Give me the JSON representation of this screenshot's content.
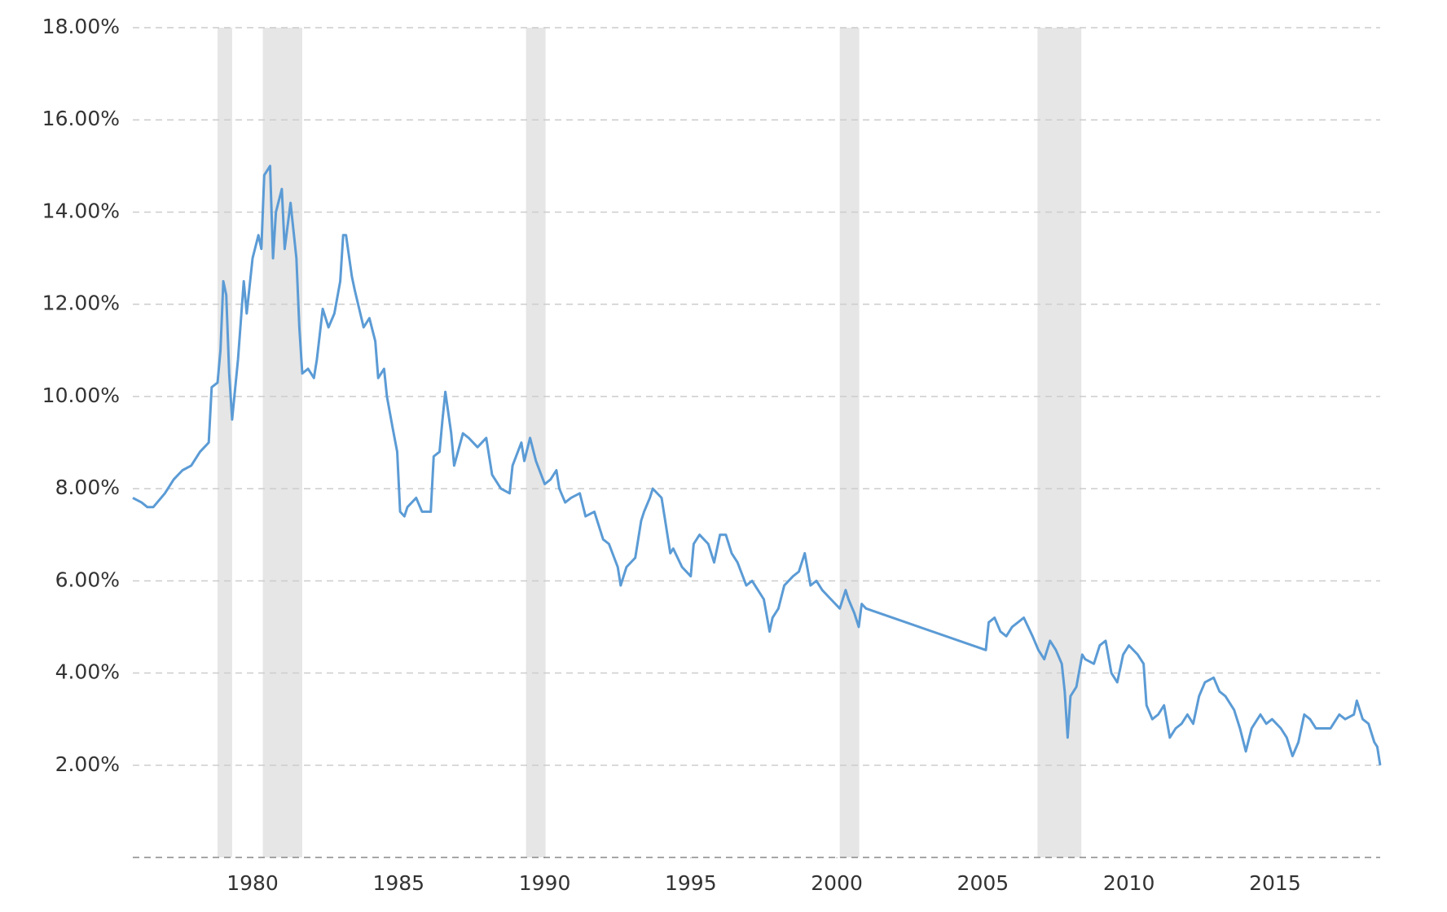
{
  "chart_data": {
    "type": "line",
    "x": [
      1975.9,
      1976.2,
      1976.4,
      1976.6,
      1977.0,
      1977.3,
      1977.6,
      1977.9,
      1978.2,
      1978.5,
      1978.6,
      1978.8,
      1978.9,
      1979.0,
      1979.1,
      1979.2,
      1979.3,
      1979.5,
      1979.7,
      1979.8,
      1980.0,
      1980.2,
      1980.3,
      1980.4,
      1980.6,
      1980.7,
      1980.8,
      1981.0,
      1981.1,
      1981.3,
      1981.5,
      1981.6,
      1981.7,
      1981.9,
      1982.1,
      1982.2,
      1982.4,
      1982.6,
      1982.8,
      1983.0,
      1983.1,
      1983.2,
      1983.4,
      1983.5,
      1983.8,
      1984.0,
      1984.2,
      1984.3,
      1984.5,
      1984.6,
      1984.8,
      1984.95,
      1985.05,
      1985.2,
      1985.3,
      1985.6,
      1985.8,
      1986.1,
      1986.2,
      1986.4,
      1986.5,
      1986.6,
      1986.8,
      1986.9,
      1987.2,
      1987.4,
      1987.7,
      1988.0,
      1988.2,
      1988.5,
      1988.8,
      1988.9,
      1989.2,
      1989.3,
      1989.5,
      1989.7,
      1990.0,
      1990.2,
      1990.4,
      1990.5,
      1990.7,
      1990.9,
      1991.2,
      1991.4,
      1991.7,
      1992.0,
      1992.2,
      1992.5,
      1992.6,
      1992.8,
      1993.1,
      1993.3,
      1993.4,
      1993.6,
      1993.7,
      1994.0,
      1994.1,
      1994.3,
      1994.4,
      1994.7,
      1995.0,
      1995.1,
      1995.3,
      1995.6,
      1995.8,
      1996.0,
      1996.2,
      1996.4,
      1996.6,
      1996.9,
      1997.1,
      1997.3,
      1997.5,
      1997.7,
      1997.8,
      1998.0,
      1998.2,
      1998.5,
      1998.7,
      1998.9,
      1999.1,
      1999.3,
      1999.5,
      1999.8,
      2000.1,
      2000.3,
      2000.4,
      2000.6,
      2000.75,
      2000.85,
      2001.0,
      2005.1,
      2005.2,
      2005.4,
      2005.6,
      2005.8,
      2006.0,
      2006.2,
      2006.4,
      2006.7,
      2006.9,
      2007.1,
      2007.3,
      2007.5,
      2007.7,
      2007.8,
      2007.9,
      2008.0,
      2008.2,
      2008.4,
      2008.5,
      2008.8,
      2009.0,
      2009.2,
      2009.4,
      2009.6,
      2009.8,
      2010.0,
      2010.3,
      2010.5,
      2010.6,
      2010.8,
      2011.0,
      2011.2,
      2011.4,
      2011.6,
      2011.8,
      2012.0,
      2012.2,
      2012.4,
      2012.6,
      2012.9,
      2013.1,
      2013.3,
      2013.6,
      2013.8,
      2014.0,
      2014.2,
      2014.5,
      2014.7,
      2014.9,
      2015.2,
      2015.4,
      2015.6,
      2015.8,
      2016.0,
      2016.2,
      2016.4,
      2016.7,
      2016.9,
      2017.2,
      2017.4,
      2017.7,
      2017.8,
      2018.0,
      2018.2,
      2018.4,
      2018.5,
      2018.6
    ],
    "series": [
      {
        "color": "#5b9bd5",
        "values": [
          7.8,
          7.7,
          7.6,
          7.6,
          7.9,
          8.2,
          8.4,
          8.5,
          8.8,
          9.0,
          10.2,
          10.3,
          11.0,
          12.5,
          12.2,
          10.5,
          9.5,
          10.8,
          12.5,
          11.8,
          13.0,
          13.5,
          13.2,
          14.8,
          15.0,
          13.0,
          14.0,
          14.5,
          13.2,
          14.2,
          13.0,
          11.5,
          10.5,
          10.6,
          10.4,
          10.8,
          11.9,
          11.5,
          11.8,
          12.5,
          13.5,
          13.5,
          12.6,
          12.3,
          11.5,
          11.7,
          11.2,
          10.4,
          10.6,
          10.0,
          9.3,
          8.8,
          7.5,
          7.4,
          7.6,
          7.8,
          7.5,
          7.5,
          8.7,
          8.8,
          9.5,
          10.1,
          9.2,
          8.5,
          9.2,
          9.1,
          8.9,
          9.1,
          8.3,
          8.0,
          7.9,
          8.5,
          9.0,
          8.6,
          9.1,
          8.6,
          8.1,
          8.2,
          8.4,
          8.0,
          7.7,
          7.8,
          7.9,
          7.4,
          7.5,
          6.9,
          6.8,
          6.3,
          5.9,
          6.3,
          6.5,
          7.3,
          7.5,
          7.8,
          8.0,
          7.8,
          7.4,
          6.6,
          6.7,
          6.3,
          6.1,
          6.8,
          7.0,
          6.8,
          6.4,
          7.0,
          7.0,
          6.6,
          6.4,
          5.9,
          6.0,
          5.8,
          5.6,
          4.9,
          5.2,
          5.4,
          5.9,
          6.1,
          6.2,
          6.6,
          5.9,
          6.0,
          5.8,
          5.6,
          5.4,
          5.8,
          5.6,
          5.3,
          5.0,
          5.5,
          5.4,
          4.5,
          5.1,
          5.2,
          4.9,
          4.8,
          5.0,
          5.1,
          5.2,
          4.8,
          4.5,
          4.3,
          4.7,
          4.5,
          4.2,
          3.6,
          2.6,
          3.5,
          3.7,
          4.4,
          4.3,
          4.2,
          4.6,
          4.7,
          4.0,
          3.8,
          4.4,
          4.6,
          4.4,
          4.2,
          3.3,
          3.0,
          3.1,
          3.3,
          2.6,
          2.8,
          2.9,
          3.1,
          2.9,
          3.5,
          3.8,
          3.9,
          3.6,
          3.5,
          3.2,
          2.8,
          2.3,
          2.8,
          3.1,
          2.9,
          3.0,
          2.8,
          2.6,
          2.2,
          2.5,
          3.1,
          3.0,
          2.8,
          2.8,
          2.8,
          3.1,
          3.0,
          3.1,
          3.4,
          3.0,
          2.9,
          2.5,
          2.4,
          2.0
        ]
      }
    ],
    "shaded_regions": [
      [
        1978.8,
        1979.3
      ],
      [
        1980.35,
        1981.7
      ],
      [
        1989.36,
        1990.03
      ],
      [
        2000.1,
        2000.77
      ],
      [
        2006.87,
        2008.37
      ]
    ],
    "shade_color": "#e6e6e6",
    "xlim": [
      1975.9,
      2018.6
    ],
    "xticks": [
      1980,
      1985,
      1990,
      1995,
      2000,
      2005,
      2010,
      2015
    ],
    "ylim": [
      0,
      18
    ],
    "yticks": [
      {
        "value": 2,
        "label": "2.00%"
      },
      {
        "value": 4,
        "label": "4.00%"
      },
      {
        "value": 6,
        "label": "6.00%"
      },
      {
        "value": 8,
        "label": "8.00%"
      },
      {
        "value": 10,
        "label": "10.00%"
      },
      {
        "value": 12,
        "label": "12.00%"
      },
      {
        "value": 14,
        "label": "14.00%"
      },
      {
        "value": 16,
        "label": "16.00%"
      },
      {
        "value": 18,
        "label": "18.00%"
      }
    ],
    "grid": true
  }
}
